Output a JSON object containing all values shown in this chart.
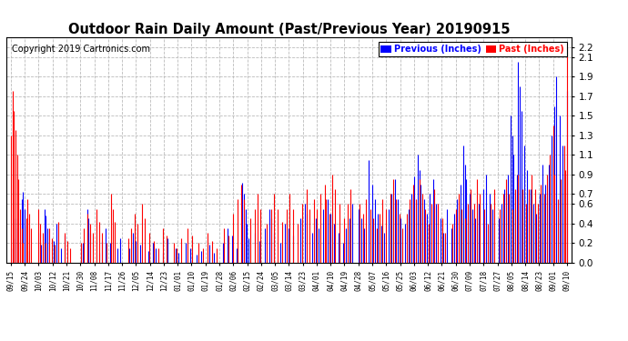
{
  "title": "Outdoor Rain Daily Amount (Past/Previous Year) 20190915",
  "copyright": "Copyright 2019 Cartronics.com",
  "legend_labels": [
    "Previous (Inches)",
    "Past (Inches)"
  ],
  "legend_colors": [
    "#0000ff",
    "#ff0000"
  ],
  "yticks": [
    0.0,
    0.2,
    0.4,
    0.6,
    0.7,
    0.9,
    1.1,
    1.3,
    1.5,
    1.7,
    1.9,
    2.1,
    2.2
  ],
  "ylim": [
    0.0,
    2.3
  ],
  "background_color": "#ffffff",
  "grid_color": "#bbbbbb",
  "title_fontsize": 10.5,
  "copyright_fontsize": 7,
  "x_labels": [
    "09/15",
    "09/24",
    "10/03",
    "10/12",
    "10/21",
    "10/30",
    "11/08",
    "11/17",
    "11/26",
    "12/05",
    "12/14",
    "12/23",
    "01/01",
    "01/10",
    "01/19",
    "01/28",
    "02/06",
    "02/15",
    "02/24",
    "03/05",
    "03/14",
    "03/23",
    "04/01",
    "04/10",
    "04/19",
    "04/28",
    "05/07",
    "05/16",
    "05/25",
    "06/03",
    "06/12",
    "06/21",
    "06/30",
    "07/09",
    "07/18",
    "07/27",
    "08/05",
    "08/14",
    "08/23",
    "09/01",
    "09/10"
  ],
  "n_points": 366
}
